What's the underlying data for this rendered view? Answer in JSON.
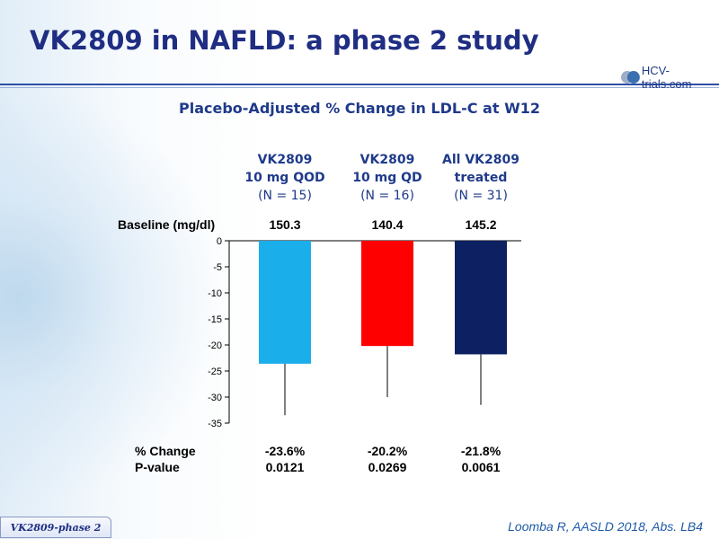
{
  "slide": {
    "title": "VK2809 in NAFLD: a phase 2 study",
    "logo_text": "HCV-trials.com",
    "footer_tab": "VK2809-phase 2",
    "citation": "Loomba R, AASLD 2018, Abs. LB4"
  },
  "chart_data": {
    "type": "bar",
    "title": "Placebo-Adjusted % Change in LDL-C at W12",
    "ylim": [
      -35,
      0
    ],
    "yticks": [
      0,
      -5,
      -10,
      -15,
      -20,
      -25,
      -30,
      -35
    ],
    "groups": [
      {
        "line1": "VK2809",
        "line2": "10 mg QOD",
        "n_label": "(N = 15)"
      },
      {
        "line1": "VK2809",
        "line2": "10 mg QD",
        "n_label": "(N = 16)"
      },
      {
        "line1": "All VK2809",
        "line2": "treated",
        "n_label": "(N = 31)"
      }
    ],
    "values": [
      -23.6,
      -20.2,
      -21.8
    ],
    "error_low": [
      -33.5,
      -30.0,
      -31.5
    ],
    "colors": [
      "#1aafeb",
      "#ff0000",
      "#0d2061"
    ],
    "baseline_label": "Baseline (mg/dl)",
    "baseline_values": [
      "150.3",
      "140.4",
      "145.2"
    ],
    "pct_change_label": "% Change",
    "pct_change_values": [
      "-23.6%",
      "-20.2%",
      "-21.8%"
    ],
    "pvalue_label": "P-value",
    "pvalue_values": [
      "0.0121",
      "0.0269",
      "0.0061"
    ]
  }
}
